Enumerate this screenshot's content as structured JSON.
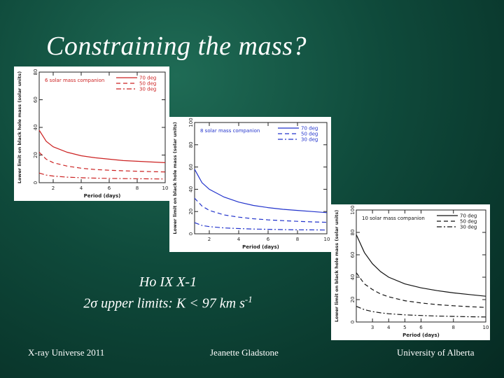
{
  "slide": {
    "title": "Constraining the mass?",
    "caption_line1": "Ho IX X-1",
    "caption_line2_main": "2σ upper limits: K < 97 km s",
    "caption_line2_sup": "-1",
    "footer_left": "X-ray Universe 2011",
    "footer_center": "Jeanette Gladstone",
    "footer_right": "University of Alberta"
  },
  "chart_data": [
    {
      "type": "line",
      "color": "#cc2222",
      "annotation": "6 solar mass companion",
      "xlabel": "Period (days)",
      "ylabel": "Lower limit on black hole mass (solar units)",
      "xlim": [
        1,
        10
      ],
      "ylim": [
        0,
        80
      ],
      "xticks": [
        "2",
        "4",
        "6",
        "8",
        "10"
      ],
      "yticks": [
        "0",
        "20",
        "40",
        "60",
        "80"
      ],
      "x": [
        1,
        1.5,
        2,
        3,
        4,
        5,
        6,
        7,
        8,
        9,
        10
      ],
      "series": [
        {
          "name": "70 deg",
          "dash": "solid",
          "values": [
            38,
            30,
            26,
            22,
            19.5,
            18,
            17,
            16,
            15.5,
            15,
            14.5
          ]
        },
        {
          "name": "50 deg",
          "dash": "dashed",
          "values": [
            22,
            17,
            14.5,
            12,
            10.5,
            9.5,
            9,
            8.6,
            8.3,
            8,
            7.8
          ]
        },
        {
          "name": "30 deg",
          "dash": "dashdot",
          "values": [
            7,
            5.5,
            4.8,
            4,
            3.6,
            3.3,
            3.1,
            3,
            2.9,
            2.8,
            2.7
          ]
        }
      ]
    },
    {
      "type": "line",
      "color": "#2233cc",
      "annotation": "8 solar mass companion",
      "xlabel": "Period (days)",
      "ylabel": "Lower limit on black hole mass (solar units)",
      "xlim": [
        1,
        10
      ],
      "ylim": [
        0,
        100
      ],
      "xticks": [
        "2",
        "4",
        "6",
        "8",
        "10"
      ],
      "yticks": [
        "0",
        "20",
        "40",
        "60",
        "80",
        "100"
      ],
      "x": [
        1,
        1.5,
        2,
        3,
        4,
        5,
        6,
        7,
        8,
        9,
        10
      ],
      "series": [
        {
          "name": "70 deg",
          "dash": "solid",
          "values": [
            58,
            46,
            40,
            33,
            28.5,
            25.5,
            23.5,
            22,
            21,
            20,
            19
          ]
        },
        {
          "name": "50 deg",
          "dash": "dashed",
          "values": [
            32,
            25,
            21,
            17,
            15,
            13.5,
            12.5,
            11.8,
            11.2,
            10.7,
            10.3
          ]
        },
        {
          "name": "30 deg",
          "dash": "dashdot",
          "values": [
            10,
            7.5,
            6.5,
            5.3,
            4.7,
            4.3,
            4,
            3.8,
            3.6,
            3.5,
            3.4
          ]
        }
      ]
    },
    {
      "type": "line",
      "color": "#111111",
      "annotation": "10 solar mass companion",
      "xlabel": "Period (days)",
      "ylabel": "Lower limit on black hole mass (solar units)",
      "xlim": [
        2,
        10
      ],
      "ylim": [
        0,
        100
      ],
      "xticks": [
        "3",
        "4",
        "5",
        "6",
        "8",
        "10"
      ],
      "yticks": [
        "0",
        "20",
        "40",
        "60",
        "80",
        "100"
      ],
      "x": [
        2,
        2.5,
        3,
        3.5,
        4,
        5,
        6,
        7,
        8,
        9,
        10
      ],
      "series": [
        {
          "name": "70 deg",
          "dash": "solid",
          "values": [
            78,
            62,
            52,
            45,
            40,
            34,
            30.5,
            28,
            26,
            24.5,
            23
          ]
        },
        {
          "name": "50 deg",
          "dash": "dashed",
          "values": [
            44,
            34,
            29,
            25,
            22.5,
            19,
            17,
            15.5,
            14.5,
            13.7,
            13
          ]
        },
        {
          "name": "30 deg",
          "dash": "dashdot",
          "values": [
            14,
            11,
            9.3,
            8.2,
            7.4,
            6.4,
            5.8,
            5.3,
            5,
            4.7,
            4.5
          ]
        }
      ]
    }
  ]
}
